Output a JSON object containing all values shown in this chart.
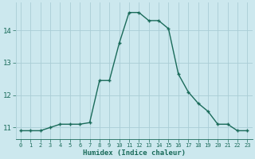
{
  "xlabel": "Humidex (Indice chaleur)",
  "x": [
    0,
    1,
    2,
    3,
    4,
    5,
    6,
    7,
    8,
    9,
    10,
    11,
    12,
    13,
    14,
    15,
    16,
    17,
    18,
    19,
    20,
    21,
    22,
    23
  ],
  "y": [
    10.9,
    10.9,
    10.9,
    11.0,
    11.1,
    11.1,
    11.1,
    11.15,
    12.45,
    12.45,
    13.6,
    14.55,
    14.55,
    14.3,
    14.3,
    14.05,
    12.65,
    12.1,
    11.75,
    11.5,
    11.1,
    11.1,
    10.9,
    10.9
  ],
  "line_color": "#1a6b5a",
  "bg_color": "#cce8ee",
  "grid_color": "#aacdd6",
  "tick_color": "#1a6b5a",
  "label_color": "#1a6b5a",
  "ylim": [
    10.65,
    14.85
  ],
  "yticks": [
    11,
    12,
    13,
    14
  ],
  "xlim": [
    -0.5,
    23.5
  ],
  "xticks": [
    0,
    1,
    2,
    3,
    4,
    5,
    6,
    7,
    8,
    9,
    10,
    11,
    12,
    13,
    14,
    15,
    16,
    17,
    18,
    19,
    20,
    21,
    22,
    23
  ]
}
